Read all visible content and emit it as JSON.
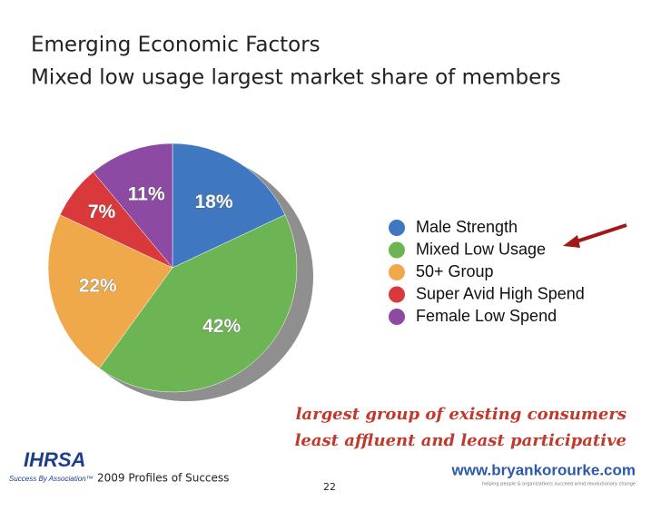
{
  "chart_data": {
    "type": "pie",
    "title": "Emerging Economic Factors",
    "subtitle": "Mixed low usage largest market share of members",
    "categories": [
      "Male Strength",
      "Mixed Low Usage",
      "50+ Group",
      "Super Avid High Spend",
      "Female Low Spend"
    ],
    "values": [
      18,
      42,
      22,
      7,
      11
    ],
    "value_labels": [
      "18%",
      "42%",
      "22%",
      "7%",
      "11%"
    ],
    "colors": [
      "#3f78c0",
      "#6cb454",
      "#f0a94a",
      "#d9393a",
      "#8c4aa2"
    ],
    "legend": "right",
    "annotations": [
      "largest group of existing consumers",
      "least affluent and least participative"
    ]
  },
  "footer": {
    "text": "2009 Profiles of Success",
    "page": "22",
    "logo_left": "IHRSA",
    "logo_left_tagline": "Success By Association™",
    "logo_right": "www.bryankorourke.com",
    "logo_right_tagline": "helping people & organizations succeed amid revolutionary change"
  }
}
